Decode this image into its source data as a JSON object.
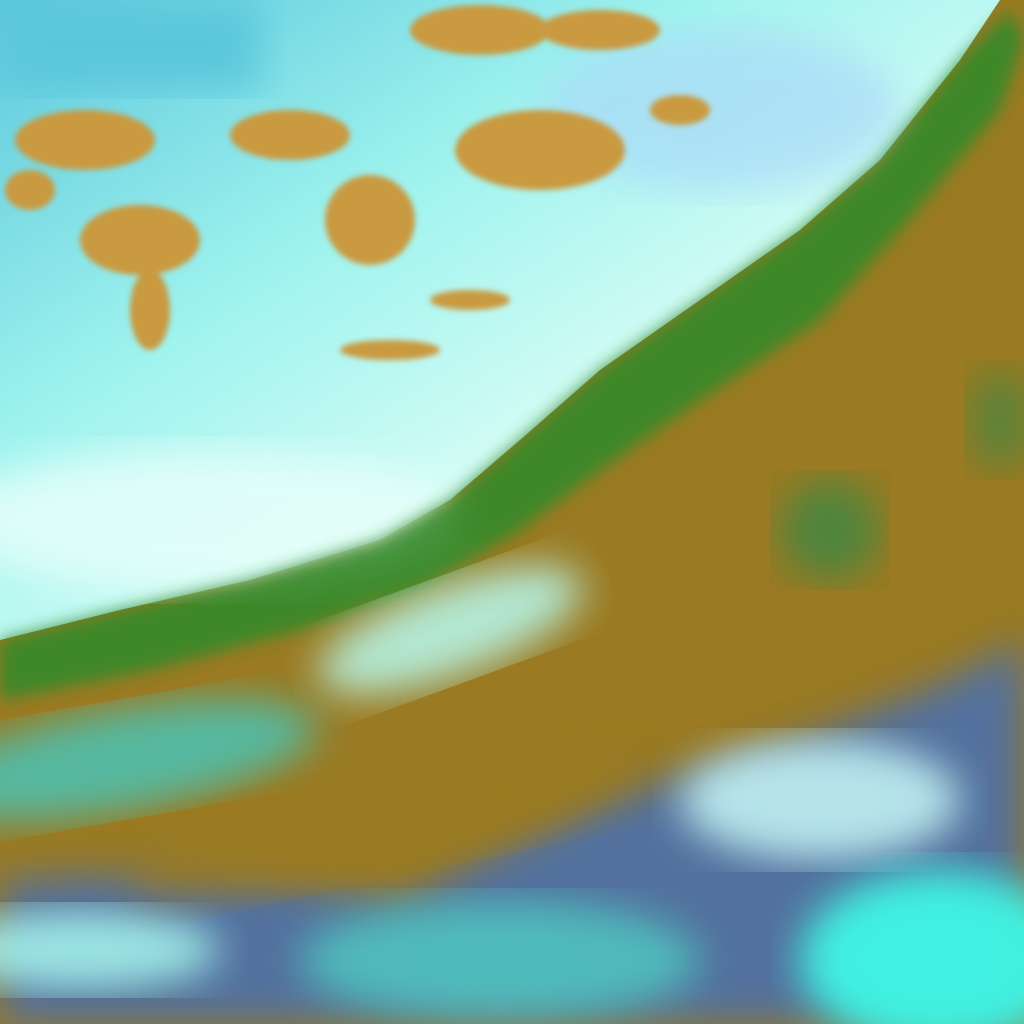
{
  "colors": {
    "land": "#9a7a22",
    "land_dark": "#7d6a1a",
    "ridge_green": "#2f8a2a",
    "cloud_cyan": "#7ff5ea",
    "cloud_white": "#e6fff8",
    "cloud_blue": "#5fb8f0",
    "sky_cyan": "#5cc7dc",
    "patch_orange": "#c99a40",
    "deep_blue": "#3a6ec8",
    "bright_cyan": "#3ff7e4"
  }
}
